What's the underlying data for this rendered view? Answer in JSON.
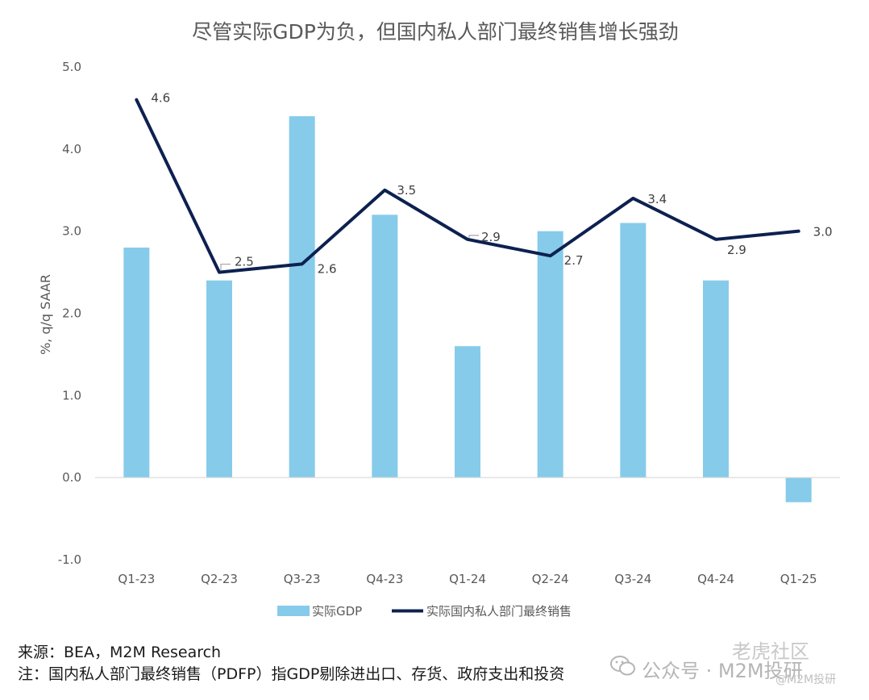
{
  "chart_data": {
    "type": "bar+line",
    "title": "尽管实际GDP为负，但国内私人部门最终销售增长强劲",
    "ylabel": "%, q/q SAAR",
    "xlabel": "",
    "categories": [
      "Q1-23",
      "Q2-23",
      "Q3-23",
      "Q4-23",
      "Q1-24",
      "Q2-24",
      "Q3-24",
      "Q4-24",
      "Q1-25"
    ],
    "ylim": [
      -1.0,
      5.0
    ],
    "yticks": [
      "-1.0",
      "0.0",
      "1.0",
      "2.0",
      "3.0",
      "4.0",
      "5.0"
    ],
    "ytick_values": [
      -1.0,
      0.0,
      1.0,
      2.0,
      3.0,
      4.0,
      5.0
    ],
    "grid": false,
    "legend_position": "bottom",
    "series": [
      {
        "name": "实际GDP",
        "type": "bar",
        "color": "#86CBEA",
        "values": [
          2.8,
          2.4,
          4.4,
          3.2,
          1.6,
          3.0,
          3.1,
          2.4,
          -0.3
        ]
      },
      {
        "name": "实际国内私人部门最终销售",
        "type": "line",
        "color": "#0D2150",
        "values": [
          4.6,
          2.5,
          2.6,
          3.5,
          2.9,
          2.7,
          3.4,
          2.9,
          3.0
        ],
        "labels": [
          "4.6",
          "2.5",
          "2.6",
          "3.5",
          "2.9",
          "2.7",
          "3.4",
          "2.9",
          "3.0"
        ]
      }
    ]
  },
  "notes": {
    "source": "来源：BEA，M2M Research",
    "note": "注：国内私人部门最终销售（PDFP）指GDP剔除进出口、存货、政府支出和投资"
  },
  "watermark": {
    "wechat": "公众号 · M2M投研",
    "community": "老虎社区",
    "handle": "@M2M投研"
  }
}
